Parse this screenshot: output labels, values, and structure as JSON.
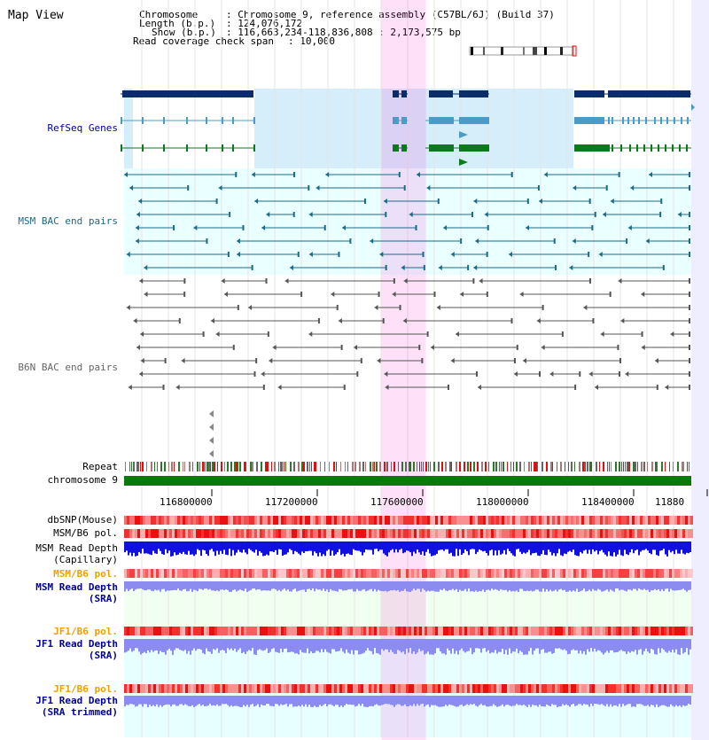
{
  "page": {
    "title": "Map View"
  },
  "header": {
    "chromosome_key": "Chromosome",
    "chromosome_val": ": Chromosome 9, reference assembly (C57BL/6J) (Build 37)",
    "length_key": "Length (b.p.)",
    "length_val": ": 124,076,172",
    "show_key": "Show (b.p.)",
    "show_val": ": 116,663,234-118,836,808 : 2,173,575 bp",
    "coverage_key": "Read coverage check span",
    "coverage_val": ": 10,000"
  },
  "tracks": {
    "refseq": "RefSeq Genes",
    "msm_bac": "MSM BAC end pairs",
    "b6n_bac": "B6N BAC end pairs",
    "repeat": "Repeat",
    "chromosome": "chromosome 9",
    "dbsnp": "dbSNP(Mouse)",
    "msm_b6_pol_cap": "MSM/B6 pol.",
    "msm_depth_cap_1": "MSM Read Depth",
    "msm_depth_cap_2": "(Capillary)",
    "msm_b6_pol_sra": "MSM/B6 pol.",
    "msm_depth_sra_1": "MSM Read Depth",
    "msm_depth_sra_2": "(SRA)",
    "jf1_b6_pol": "JF1/B6 pol.",
    "jf1_depth_1": "JF1 Read Depth",
    "jf1_depth_2": "(SRA)",
    "jf1_b6_pol_trim": "JF1/B6 pol.",
    "jf1_depth_trim_1": "JF1 Read Depth",
    "jf1_depth_trim_2": "(SRA trimmed)"
  },
  "axis": {
    "start_bp": 116663234,
    "end_bp": 118836808,
    "ticks": [
      "116800000",
      "117200000",
      "117600000",
      "118000000",
      "118400000",
      "11880"
    ]
  },
  "highlight": {
    "start_bp": 117650000,
    "end_bp": 117820000
  },
  "colors": {
    "refseq_dark": "#0a2d6a",
    "refseq_mid": "#4a9cc6",
    "refseq_green": "#0a7a1a",
    "msm_bac": "#1a6a8a",
    "b6n_bac": "#555555",
    "chromosome": "#0a7a0a",
    "pol": "#f03030",
    "depth_cap": "#1010e0",
    "depth_sra": "#8c8cf0",
    "label_orange": "#f0a000",
    "label_blue": "#000099",
    "label_gray": "#666666",
    "label_msm": "#1a6a8a"
  },
  "icons": {
    "ideogram": "chromosome-ideogram-icon"
  }
}
